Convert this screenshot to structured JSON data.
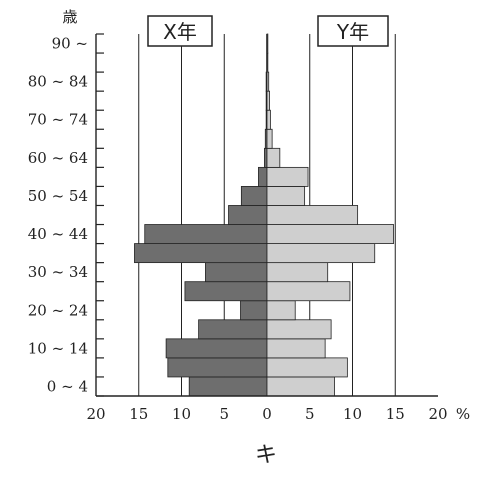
{
  "chart_data": {
    "type": "bar",
    "orientation": "horizontal",
    "y_unit_label": "歳",
    "x_unit_label": "%",
    "left_panel_label": "X年",
    "right_panel_label": "Y年",
    "caption": "キ",
    "categories": [
      "0~4",
      "5~9",
      "10~14",
      "15~19",
      "20~24",
      "25~29",
      "30~34",
      "35~39",
      "40~44",
      "45~49",
      "50~54",
      "55~59",
      "60~64",
      "65~69",
      "70~74",
      "75~79",
      "80~84",
      "85~89",
      "90~"
    ],
    "y_tick_labels": [
      "0 ~ 4",
      "10 ~ 14",
      "20 ~ 24",
      "30 ~ 34",
      "40 ~ 44",
      "50 ~ 54",
      "60 ~ 64",
      "70 ~ 74",
      "80 ~ 84",
      "90 ~"
    ],
    "x_tick_labels": [
      "20",
      "15",
      "10",
      "5",
      "0",
      "5",
      "10",
      "15",
      "20"
    ],
    "xlim": [
      -20,
      20
    ],
    "grid": true,
    "series": [
      {
        "name": "X年",
        "side": "left",
        "values": [
          9.1,
          11.6,
          11.8,
          8.0,
          3.1,
          9.6,
          7.2,
          15.5,
          14.3,
          4.5,
          3.0,
          1.0,
          0.3,
          0.2,
          0.1,
          0.1,
          0.1,
          0.0,
          0.0
        ]
      },
      {
        "name": "Y年",
        "side": "right",
        "values": [
          7.9,
          9.4,
          6.8,
          7.5,
          3.3,
          9.7,
          7.1,
          12.6,
          14.8,
          10.6,
          4.4,
          4.8,
          1.5,
          0.6,
          0.4,
          0.3,
          0.2,
          0.1,
          0.1
        ]
      }
    ],
    "colors": {
      "left_bars": "#6e6e6e",
      "right_bars": "#cfcfcf",
      "bar_stroke": "#222222",
      "grid": "#222222"
    }
  }
}
